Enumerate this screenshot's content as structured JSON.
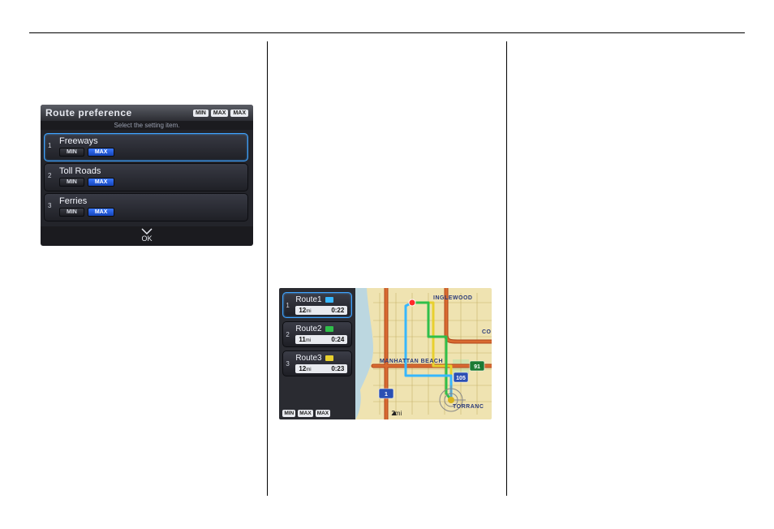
{
  "route_preference": {
    "title": "Route preference",
    "subtitle": "Select the setting item.",
    "header_badges": [
      "MIN",
      "MAX",
      "MAX"
    ],
    "ok_label": "OK",
    "items": [
      {
        "idx": "1",
        "name": "Freeways",
        "min_label": "MIN",
        "max_label": "MAX",
        "selected": true
      },
      {
        "idx": "2",
        "name": "Toll Roads",
        "min_label": "MIN",
        "max_label": "MAX",
        "selected": false
      },
      {
        "idx": "3",
        "name": "Ferries",
        "min_label": "MIN",
        "max_label": "MAX",
        "selected": false
      }
    ]
  },
  "route_select": {
    "footer_badges": [
      "MIN",
      "MAX",
      "MAX"
    ],
    "scale_label": "2mi",
    "routes": [
      {
        "idx": "1",
        "name": "Route1",
        "color": "#37b7ff",
        "dist": "12",
        "unit": "mi",
        "time": "0:22",
        "selected": true
      },
      {
        "idx": "2",
        "name": "Route2",
        "color": "#2fbf4a",
        "dist": "11",
        "unit": "mi",
        "time": "0:24",
        "selected": false
      },
      {
        "idx": "3",
        "name": "Route3",
        "color": "#e8d02e",
        "dist": "12",
        "unit": "mi",
        "time": "0:23",
        "selected": false
      }
    ],
    "map": {
      "bg_land": "#efe3b1",
      "bg_sea": "#bcd7e0",
      "highway_color": "#d96a30",
      "highway_case": "#b0461b",
      "street_color": "#f5e9b8",
      "street_stroke": "#c7b46a",
      "park_color": "#cfe3af",
      "labels": {
        "inglewood": "INGLEWOOD",
        "manhattan_beach": "MANHATTAN BEACH",
        "torrance": "TORRANC",
        "co": "CO"
      },
      "shields": {
        "i105": "105",
        "i1": "1",
        "s91": "91"
      },
      "dest_ring_color": "#d7b420",
      "start_marker_color": "#ff2a2a"
    }
  }
}
